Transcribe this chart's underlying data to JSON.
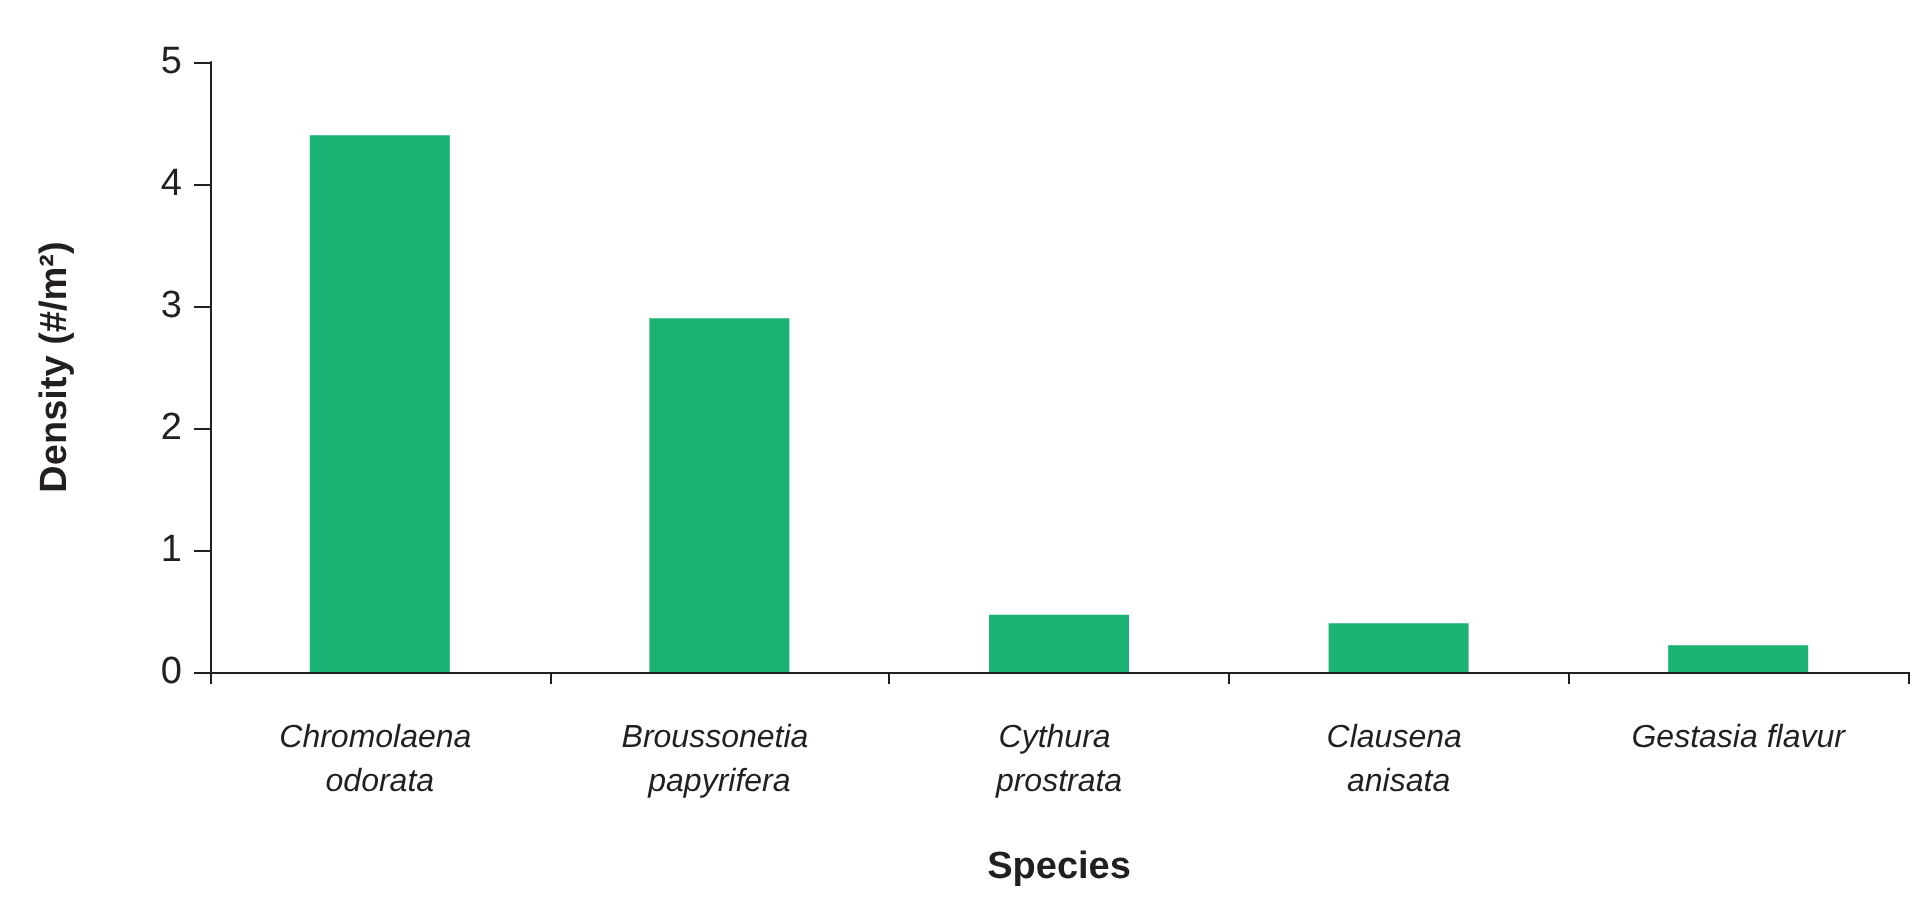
{
  "chart_data": {
    "type": "bar",
    "xlabel": "Species",
    "ylabel": "Density (#/m²)",
    "categories": [
      "Chromolaena odorata",
      "Broussonetia papyrifera",
      "Cythura prostrata",
      "Clausena anisata",
      "Gestasia flavur"
    ],
    "values": [
      4.4,
      2.9,
      0.47,
      0.4,
      0.22
    ],
    "color": "#1bb374",
    "ylim": [
      0,
      5
    ],
    "yticks": [
      0,
      1,
      2,
      3,
      4,
      5
    ],
    "grid": false
  }
}
